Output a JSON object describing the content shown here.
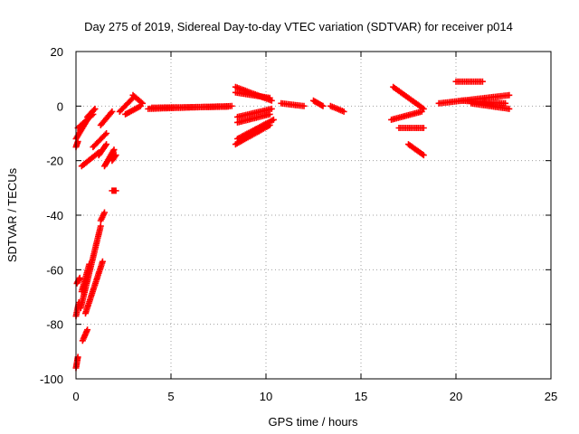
{
  "chart_data": {
    "type": "scatter",
    "title": "Day 275 of 2019, Sidereal Day-to-day VTEC variation (SDTVAR) for receiver p014",
    "xlabel": "GPS time / hours",
    "ylabel": "SDTVAR / TECUs",
    "xlim": [
      0,
      25
    ],
    "ylim": [
      -100,
      20
    ],
    "xticks": [
      0,
      5,
      10,
      15,
      20,
      25
    ],
    "yticks": [
      -100,
      -80,
      -60,
      -40,
      -20,
      0,
      20
    ],
    "grid": true,
    "marker": "plus",
    "series_color": "#ff0000",
    "segments": [
      {
        "name": "t0-deep-1",
        "x": [
          0.0,
          0.1
        ],
        "y": [
          -96,
          -92
        ]
      },
      {
        "name": "t0-deep-2",
        "x": [
          0.35,
          0.6
        ],
        "y": [
          -86,
          -82
        ]
      },
      {
        "name": "t0-deep-3",
        "x": [
          0.0,
          0.15
        ],
        "y": [
          -77,
          -72
        ]
      },
      {
        "name": "t0-deep-4",
        "x": [
          0.05,
          0.2
        ],
        "y": [
          -65,
          -63
        ]
      },
      {
        "name": "rise-a",
        "x": [
          0.25,
          1.3
        ],
        "y": [
          -74,
          -44
        ]
      },
      {
        "name": "rise-b",
        "x": [
          0.5,
          1.4
        ],
        "y": [
          -76,
          -57
        ]
      },
      {
        "name": "rise-c",
        "x": [
          0.3,
          0.7
        ],
        "y": [
          -68,
          -58
        ]
      },
      {
        "name": "rise-d",
        "x": [
          1.3,
          1.5
        ],
        "y": [
          -42,
          -39
        ]
      },
      {
        "name": "early-1",
        "x": [
          0.0,
          0.6
        ],
        "y": [
          -12,
          -5
        ]
      },
      {
        "name": "early-2",
        "x": [
          0.1,
          0.9
        ],
        "y": [
          -8,
          -3
        ]
      },
      {
        "name": "early-3",
        "x": [
          0.6,
          1.0
        ],
        "y": [
          -4,
          -1
        ]
      },
      {
        "name": "early-4",
        "x": [
          0.3,
          1.2
        ],
        "y": [
          -22,
          -17
        ]
      },
      {
        "name": "early-5",
        "x": [
          0.9,
          1.6
        ],
        "y": [
          -15,
          -10
        ]
      },
      {
        "name": "early-6",
        "x": [
          1.2,
          1.6
        ],
        "y": [
          -18,
          -14
        ]
      },
      {
        "name": "early-7",
        "x": [
          1.5,
          2.0
        ],
        "y": [
          -22,
          -16
        ]
      },
      {
        "name": "early-8",
        "x": [
          1.3,
          1.9
        ],
        "y": [
          -7,
          -2
        ]
      },
      {
        "name": "early-9",
        "x": [
          0.0,
          0.1
        ],
        "y": [
          -15,
          -13
        ]
      },
      {
        "name": "early-10",
        "x": [
          1.9,
          2.1
        ],
        "y": [
          -31,
          -31
        ]
      },
      {
        "name": "early-11",
        "x": [
          1.9,
          2.1
        ],
        "y": [
          -20,
          -18
        ]
      },
      {
        "name": "hump-1",
        "x": [
          2.3,
          3.0
        ],
        "y": [
          -2,
          3
        ]
      },
      {
        "name": "hump-2",
        "x": [
          2.6,
          3.4
        ],
        "y": [
          -3,
          0
        ]
      },
      {
        "name": "hump-3",
        "x": [
          3.0,
          3.5
        ],
        "y": [
          4,
          1
        ]
      },
      {
        "name": "flat-1",
        "x": [
          3.8,
          8.2
        ],
        "y": [
          -1,
          0
        ]
      },
      {
        "name": "flat-2",
        "x": [
          4.0,
          8.0
        ],
        "y": [
          -0.6,
          -0.2
        ]
      },
      {
        "name": "arc8-1",
        "x": [
          8.4,
          10.3
        ],
        "y": [
          7,
          2
        ]
      },
      {
        "name": "arc8-2",
        "x": [
          8.4,
          10.2
        ],
        "y": [
          5,
          3
        ]
      },
      {
        "name": "arc8-3",
        "x": [
          8.5,
          10.3
        ],
        "y": [
          -4,
          -1
        ]
      },
      {
        "name": "arc8-4",
        "x": [
          8.5,
          10.2
        ],
        "y": [
          -6,
          -3
        ]
      },
      {
        "name": "arc8-5",
        "x": [
          8.4,
          10.2
        ],
        "y": [
          -14,
          -7
        ]
      },
      {
        "name": "arc8-6",
        "x": [
          8.5,
          10.4
        ],
        "y": [
          -12,
          -5
        ]
      },
      {
        "name": "mid-1",
        "x": [
          10.8,
          12.0
        ],
        "y": [
          1,
          0
        ]
      },
      {
        "name": "mid-2",
        "x": [
          12.5,
          13.0
        ],
        "y": [
          2,
          0
        ]
      },
      {
        "name": "mid-3",
        "x": [
          13.4,
          14.1
        ],
        "y": [
          0,
          -2
        ]
      },
      {
        "name": "arc17-1",
        "x": [
          16.7,
          18.3
        ],
        "y": [
          7,
          -1
        ]
      },
      {
        "name": "arc17-2",
        "x": [
          16.6,
          18.2
        ],
        "y": [
          -5,
          -2
        ]
      },
      {
        "name": "arc17-3",
        "x": [
          17.0,
          18.3
        ],
        "y": [
          -8,
          -8
        ]
      },
      {
        "name": "arc17-4",
        "x": [
          17.5,
          18.3
        ],
        "y": [
          -14,
          -18
        ]
      },
      {
        "name": "arc20-1",
        "x": [
          19.1,
          22.8
        ],
        "y": [
          1,
          4
        ]
      },
      {
        "name": "arc20-2",
        "x": [
          20.3,
          22.6
        ],
        "y": [
          2,
          1
        ]
      },
      {
        "name": "arc20-3",
        "x": [
          20.8,
          22.8
        ],
        "y": [
          1,
          -1
        ]
      },
      {
        "name": "arc20-4",
        "x": [
          20.0,
          21.4
        ],
        "y": [
          9,
          9
        ]
      }
    ]
  }
}
